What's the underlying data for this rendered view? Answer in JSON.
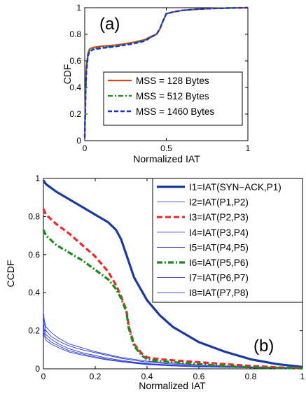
{
  "chart_data": [
    {
      "type": "line",
      "panel_label": "(a)",
      "xlabel": "Normalized IAT",
      "ylabel": "CDF",
      "xlim": [
        0,
        1
      ],
      "ylim": [
        0,
        1
      ],
      "xticks": [
        "0",
        "0.5",
        "1"
      ],
      "yticks": [
        "0",
        "0.2",
        "0.4",
        "0.6",
        "0.8",
        "1"
      ],
      "legend_position": "lower-right",
      "series": [
        {
          "name": "MSS = 128 Bytes",
          "color": "#d9441c",
          "style": "solid",
          "x": [
            0,
            0.005,
            0.01,
            0.02,
            0.03,
            0.05,
            0.1,
            0.2,
            0.3,
            0.37,
            0.4,
            0.44,
            0.46,
            0.48,
            0.5,
            0.55,
            0.6,
            0.7,
            0.8,
            0.9,
            1.0
          ],
          "y": [
            0.03,
            0.38,
            0.55,
            0.66,
            0.69,
            0.7,
            0.71,
            0.72,
            0.74,
            0.76,
            0.78,
            0.8,
            0.84,
            0.9,
            0.955,
            0.97,
            0.98,
            0.99,
            0.995,
            0.998,
            1.0
          ]
        },
        {
          "name": "MSS = 512 Bytes",
          "color": "#1a8c1a",
          "style": "dash-dot",
          "x": [
            0,
            0.005,
            0.01,
            0.02,
            0.03,
            0.05,
            0.1,
            0.2,
            0.3,
            0.37,
            0.4,
            0.44,
            0.46,
            0.48,
            0.5,
            0.55,
            0.6,
            0.7,
            0.8,
            0.9,
            1.0
          ],
          "y": [
            0.02,
            0.36,
            0.53,
            0.65,
            0.68,
            0.69,
            0.7,
            0.715,
            0.735,
            0.755,
            0.775,
            0.8,
            0.84,
            0.9,
            0.955,
            0.97,
            0.98,
            0.99,
            0.995,
            0.998,
            1.0
          ]
        },
        {
          "name": "MSS = 1460 Bytes",
          "color": "#1f2fd8",
          "style": "dashed",
          "x": [
            0,
            0.005,
            0.01,
            0.02,
            0.03,
            0.05,
            0.1,
            0.2,
            0.3,
            0.37,
            0.4,
            0.44,
            0.46,
            0.48,
            0.5,
            0.55,
            0.6,
            0.7,
            0.8,
            0.9,
            1.0
          ],
          "y": [
            0.02,
            0.35,
            0.52,
            0.64,
            0.67,
            0.685,
            0.695,
            0.71,
            0.73,
            0.75,
            0.775,
            0.8,
            0.84,
            0.9,
            0.955,
            0.97,
            0.98,
            0.99,
            0.995,
            0.998,
            1.0
          ]
        }
      ]
    },
    {
      "type": "line",
      "panel_label": "(b)",
      "xlabel": "Normalized IAT",
      "ylabel": "CCDF",
      "xlim": [
        0,
        1
      ],
      "ylim": [
        0,
        1
      ],
      "xticks": [
        "0",
        "0.2",
        "0.4",
        "0.6",
        "0.8",
        "1"
      ],
      "yticks": [
        "0",
        "0.2",
        "0.4",
        "0.6",
        "0.8",
        "1"
      ],
      "legend_position": "top-right",
      "series": [
        {
          "name": "I1=IAT(SYN−ACK,P1)",
          "color": "#1b3a9e",
          "style": "solid-thick",
          "x": [
            0,
            0.01,
            0.05,
            0.1,
            0.15,
            0.2,
            0.25,
            0.28,
            0.3,
            0.32,
            0.35,
            0.4,
            0.45,
            0.5,
            0.6,
            0.7,
            0.8,
            0.9,
            1.0
          ],
          "y": [
            0.99,
            0.97,
            0.93,
            0.89,
            0.85,
            0.81,
            0.77,
            0.73,
            0.68,
            0.6,
            0.48,
            0.36,
            0.28,
            0.22,
            0.14,
            0.09,
            0.05,
            0.025,
            0.01
          ]
        },
        {
          "name": "I2=IAT(P1,P2)",
          "color": "#2a3bd6",
          "style": "solid-thin",
          "x": [
            0,
            0.003,
            0.01,
            0.03,
            0.06,
            0.1,
            0.15,
            0.2,
            0.25,
            0.3,
            0.35,
            0.4,
            0.5,
            0.6,
            0.8,
            1.0
          ],
          "y": [
            0.3,
            0.26,
            0.22,
            0.19,
            0.16,
            0.13,
            0.11,
            0.09,
            0.075,
            0.06,
            0.05,
            0.04,
            0.03,
            0.02,
            0.01,
            0.005
          ]
        },
        {
          "name": "I3=IAT(P2,P3)",
          "color": "#ec2a2a",
          "style": "dashed-thick",
          "x": [
            0,
            0.01,
            0.05,
            0.1,
            0.15,
            0.2,
            0.25,
            0.28,
            0.3,
            0.32,
            0.33,
            0.35,
            0.38,
            0.4,
            0.45,
            0.5,
            0.6,
            0.7,
            0.8,
            0.9,
            1.0
          ],
          "y": [
            0.84,
            0.81,
            0.76,
            0.71,
            0.65,
            0.59,
            0.51,
            0.44,
            0.38,
            0.31,
            0.22,
            0.13,
            0.08,
            0.06,
            0.05,
            0.045,
            0.035,
            0.025,
            0.015,
            0.008,
            0.003
          ]
        },
        {
          "name": "I4=IAT(P3,P4)",
          "color": "#2a3bd6",
          "style": "solid-thin",
          "x": [
            0,
            0.003,
            0.01,
            0.03,
            0.06,
            0.1,
            0.15,
            0.2,
            0.25,
            0.3,
            0.35,
            0.4,
            0.5,
            0.6,
            0.8,
            1.0
          ],
          "y": [
            0.28,
            0.24,
            0.2,
            0.17,
            0.145,
            0.12,
            0.1,
            0.085,
            0.07,
            0.055,
            0.045,
            0.035,
            0.025,
            0.018,
            0.009,
            0.004
          ]
        },
        {
          "name": "I5=IAT(P4,P5)",
          "color": "#2a3bd6",
          "style": "solid-thin",
          "x": [
            0,
            0.003,
            0.01,
            0.03,
            0.06,
            0.1,
            0.15,
            0.2,
            0.25,
            0.3,
            0.35,
            0.4,
            0.5,
            0.6,
            0.8,
            1.0
          ],
          "y": [
            0.25,
            0.21,
            0.18,
            0.155,
            0.13,
            0.105,
            0.085,
            0.07,
            0.055,
            0.045,
            0.035,
            0.028,
            0.02,
            0.014,
            0.007,
            0.003
          ]
        },
        {
          "name": "I6=IAT(P5,P6)",
          "color": "#1a8c1a",
          "style": "dash-dot-thick",
          "x": [
            0,
            0.01,
            0.05,
            0.1,
            0.15,
            0.2,
            0.25,
            0.28,
            0.3,
            0.32,
            0.33,
            0.35,
            0.38,
            0.4,
            0.45,
            0.5,
            0.6,
            0.7,
            0.8,
            1.0
          ],
          "y": [
            0.73,
            0.7,
            0.65,
            0.61,
            0.57,
            0.52,
            0.47,
            0.42,
            0.37,
            0.3,
            0.21,
            0.12,
            0.07,
            0.05,
            0.04,
            0.035,
            0.025,
            0.015,
            0.008,
            0.002
          ]
        },
        {
          "name": "I7=IAT(P6,P7)",
          "color": "#2a3bd6",
          "style": "solid-thin",
          "x": [
            0,
            0.003,
            0.01,
            0.03,
            0.06,
            0.1,
            0.15,
            0.2,
            0.25,
            0.3,
            0.35,
            0.4,
            0.5,
            0.6,
            0.8,
            1.0
          ],
          "y": [
            0.22,
            0.19,
            0.165,
            0.14,
            0.12,
            0.095,
            0.078,
            0.063,
            0.05,
            0.04,
            0.032,
            0.025,
            0.017,
            0.012,
            0.006,
            0.002
          ]
        },
        {
          "name": "I8=IAT(P7,P8)",
          "color": "#2a3bd6",
          "style": "solid-thin",
          "x": [
            0,
            0.003,
            0.01,
            0.03,
            0.06,
            0.1,
            0.15,
            0.2,
            0.25,
            0.3,
            0.35,
            0.4,
            0.5,
            0.6,
            0.8,
            1.0
          ],
          "y": [
            0.2,
            0.175,
            0.15,
            0.13,
            0.11,
            0.088,
            0.072,
            0.058,
            0.046,
            0.037,
            0.029,
            0.022,
            0.015,
            0.01,
            0.005,
            0.002
          ]
        }
      ]
    }
  ]
}
